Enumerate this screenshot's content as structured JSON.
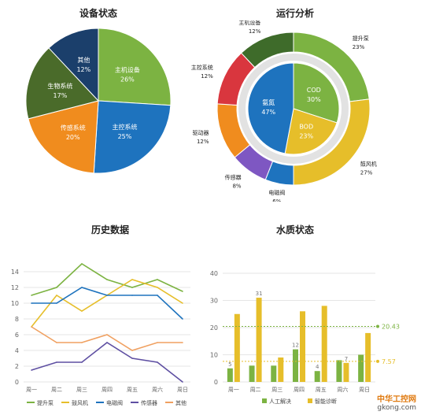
{
  "chart_data": [
    {
      "type": "pie",
      "title": "设备状态",
      "slices": [
        {
          "label": "主机设备",
          "value": 26,
          "pct_label": "26%",
          "color": "#7cb342"
        },
        {
          "label": "主控系统",
          "value": 25,
          "pct_label": "25%",
          "color": "#1e73be"
        },
        {
          "label": "传感系统",
          "value": 20,
          "pct_label": "20%",
          "color": "#f08c1e"
        },
        {
          "label": "生物系统",
          "value": 17,
          "pct_label": "17%",
          "color": "#4a6b2a"
        },
        {
          "label": "其他",
          "value": 12,
          "pct_label": "12%",
          "color": "#1b3f6b"
        }
      ]
    },
    {
      "type": "pie",
      "title": "运行分析",
      "outer": [
        {
          "label": "提升泵",
          "value": 23,
          "pct_label": "23%",
          "color": "#7cb342"
        },
        {
          "label": "鼓风机",
          "value": 27,
          "pct_label": "27%",
          "color": "#e6be2a"
        },
        {
          "label": "电磁阀",
          "value": 6,
          "pct_label": "6%",
          "color": "#1e73be"
        },
        {
          "label": "传感器",
          "value": 8,
          "pct_label": "8%",
          "color": "#7e57c2"
        },
        {
          "label": "驱动器",
          "value": 12,
          "pct_label": "12%",
          "color": "#f08c1e"
        },
        {
          "label": "主控系统",
          "value": 12,
          "pct_label": "12%",
          "color": "#d9363e"
        },
        {
          "label": "主机设备",
          "value": 12,
          "pct_label": "12%",
          "color": "#3e6b2a"
        }
      ],
      "inner": [
        {
          "label": "COD",
          "value": 30,
          "pct_label": "30%",
          "color": "#7cb342"
        },
        {
          "label": "BOD",
          "value": 23,
          "pct_label": "23%",
          "color": "#e6be2a"
        },
        {
          "label": "氨氮",
          "value": 47,
          "pct_label": "47%",
          "color": "#1e73be"
        }
      ]
    },
    {
      "type": "line",
      "title": "历史数据",
      "categories": [
        "周一",
        "周二",
        "周三",
        "周四",
        "周五",
        "周六",
        "周日"
      ],
      "ylim": [
        0,
        16
      ],
      "yticks": [
        0,
        2,
        4,
        6,
        8,
        10,
        12,
        14
      ],
      "series": [
        {
          "name": "提升泵",
          "color": "#7cb342",
          "values": [
            11,
            12,
            15,
            13,
            12,
            13,
            11.5
          ]
        },
        {
          "name": "鼓风机",
          "color": "#e6be2a",
          "values": [
            7,
            11,
            9,
            11,
            13,
            12,
            10
          ]
        },
        {
          "name": "电磁阀",
          "color": "#1e73be",
          "values": [
            10,
            10,
            12,
            11,
            11,
            11,
            8
          ]
        },
        {
          "name": "传感器",
          "color": "#5e4fa2",
          "values": [
            1.5,
            2.5,
            2.5,
            5,
            3,
            2.5,
            0
          ]
        },
        {
          "name": "其他",
          "color": "#f0a060",
          "values": [
            7,
            5,
            5,
            6,
            4,
            5,
            5
          ]
        }
      ]
    },
    {
      "type": "bar",
      "title": "水质状态",
      "categories": [
        "周一",
        "周二",
        "周三",
        "周四",
        "周五",
        "周六",
        "周日"
      ],
      "ylim": [
        0,
        40
      ],
      "yticks": [
        0,
        10,
        20,
        30,
        40
      ],
      "series": [
        {
          "name": "人工解决",
          "color": "#7cb342",
          "values": [
            5,
            6,
            6,
            12,
            4,
            8,
            10
          ],
          "labels": [
            "5",
            "",
            "",
            "12",
            "4",
            "",
            ""
          ]
        },
        {
          "name": "智能诊断",
          "color": "#e6be2a",
          "values": [
            25,
            31,
            9,
            26,
            28,
            7,
            18
          ],
          "labels": [
            "",
            "31",
            "",
            "",
            "",
            "7",
            ""
          ]
        }
      ],
      "reference_lines": [
        {
          "value": 20.43,
          "label": "20.43",
          "color": "#7cb342"
        },
        {
          "value": 7.57,
          "label": "7.57",
          "color": "#e6be2a"
        }
      ]
    }
  ],
  "watermark": {
    "line1": "中华工控网",
    "line2": "gkong.com"
  }
}
